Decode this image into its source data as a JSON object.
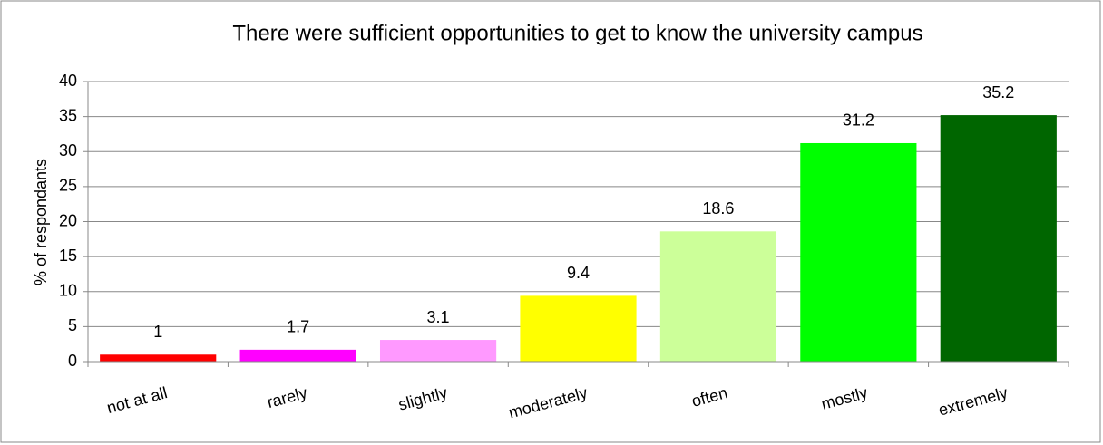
{
  "chart_data": {
    "type": "bar",
    "title": "There were sufficient opportunities to get to know the university campus",
    "y_label": "% of respondants",
    "categories": [
      "not at all",
      "rarely",
      "slightly",
      "moderately",
      "often",
      "mostly",
      "extremely"
    ],
    "values": [
      1,
      1.7,
      3.1,
      9.4,
      18.6,
      31.2,
      35.2
    ],
    "colors": [
      "#ff0000",
      "#ff00ff",
      "#ff99ff",
      "#ffff00",
      "#ccff99",
      "#00ff00",
      "#006600"
    ],
    "ylim": [
      0,
      40
    ],
    "yticks": [
      0,
      5,
      10,
      15,
      20,
      25,
      30,
      35,
      40
    ],
    "grid": true
  }
}
